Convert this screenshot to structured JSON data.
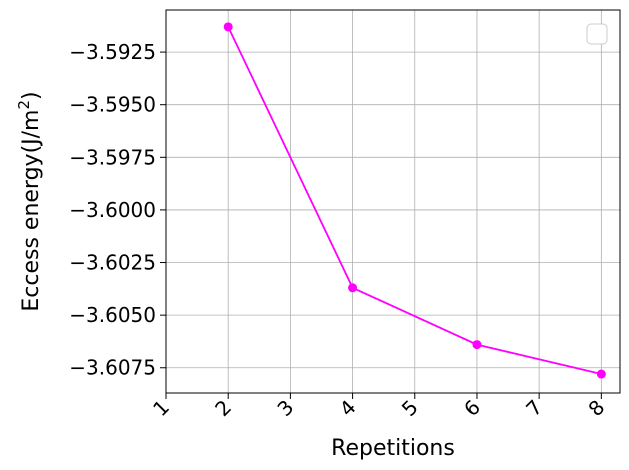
{
  "chart_data": {
    "type": "line",
    "title": "",
    "xlabel": "Repetitions",
    "ylabel_main": "Eccess energy(J/m",
    "ylabel_sup": "2",
    "ylabel_close": ")",
    "xlim": [
      1,
      8.3
    ],
    "ylim": [
      -3.6087,
      -3.5905
    ],
    "x_ticks": [
      1,
      2,
      3,
      4,
      5,
      6,
      7,
      8
    ],
    "x_tick_labels": [
      "1",
      "2",
      "3",
      "4",
      "5",
      "6",
      "7",
      "8"
    ],
    "y_ticks": [
      -3.5925,
      -3.595,
      -3.5975,
      -3.6,
      -3.6025,
      -3.605,
      -3.6075
    ],
    "y_tick_labels": [
      "−3.5925",
      "−3.5950",
      "−3.5975",
      "−3.6000",
      "−3.6025",
      "−3.6050",
      "−3.6075"
    ],
    "grid": true,
    "legend": "top-right (empty)",
    "series": [
      {
        "color": "#ff00ff",
        "x": [
          2,
          4,
          6,
          8
        ],
        "y": [
          -3.5913,
          -3.6037,
          -3.6064,
          -3.6078
        ]
      }
    ]
  }
}
